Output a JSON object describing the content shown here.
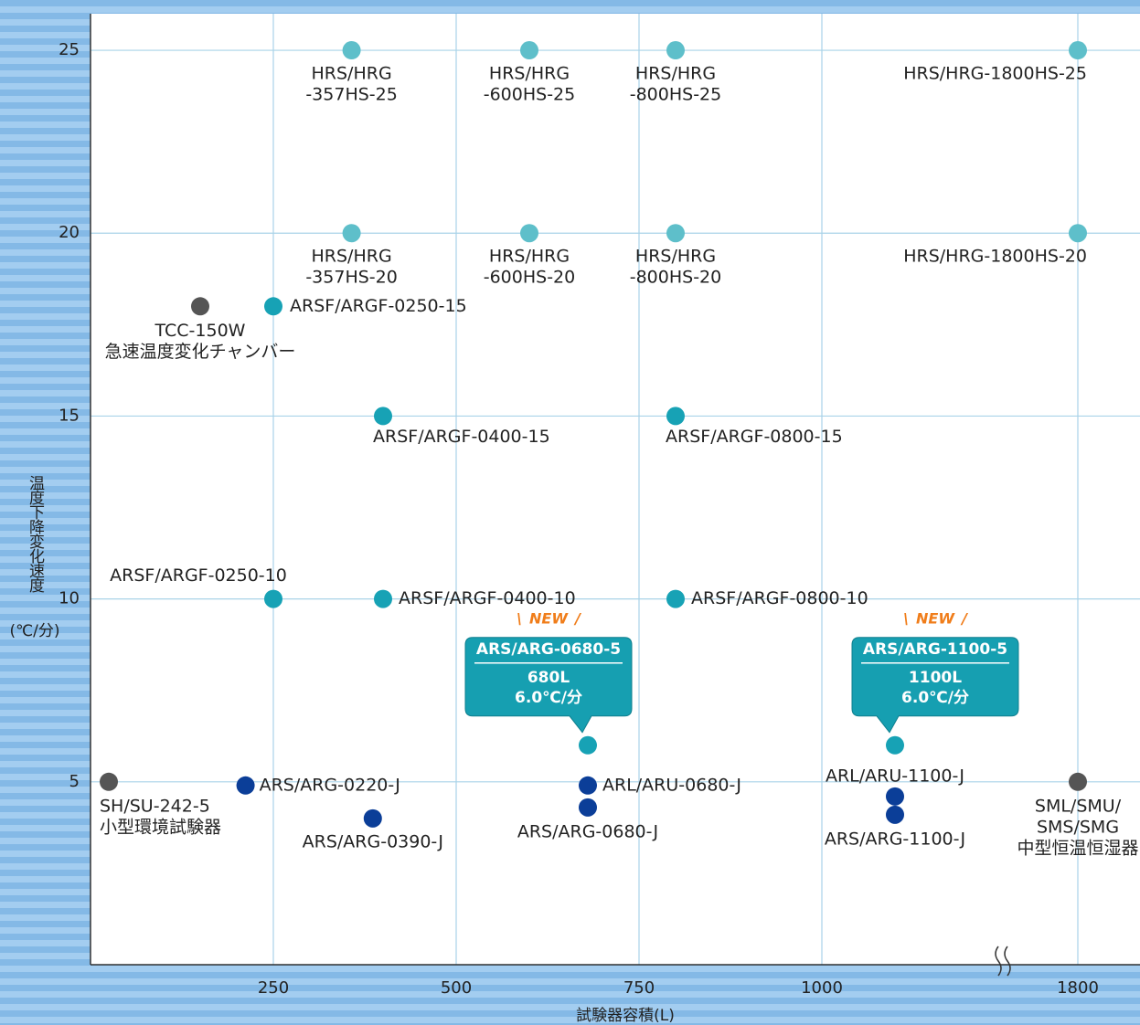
{
  "chart_data": {
    "type": "scatter",
    "xlabel": "試験器容積(L)",
    "ylabel": "温度下降変化速度",
    "yunit": "(℃/分)",
    "xlim": [
      0,
      1885
    ],
    "x_break": [
      1250,
      1700
    ],
    "xticks": [
      250,
      500,
      750,
      1000,
      1800
    ],
    "ylim": [
      0,
      26
    ],
    "yticks": [
      5,
      10,
      15,
      20,
      25
    ],
    "grid": true,
    "points": [
      {
        "label": [
          "HRS/HRG",
          "-357HS-25"
        ],
        "x": 357,
        "y": 25,
        "color": "#5ebfca"
      },
      {
        "label": [
          "HRS/HRG",
          "-600HS-25"
        ],
        "x": 600,
        "y": 25,
        "color": "#5ebfca"
      },
      {
        "label": [
          "HRS/HRG",
          "-800HS-25"
        ],
        "x": 800,
        "y": 25,
        "color": "#5ebfca"
      },
      {
        "label": [
          "HRS/HRG-1800HS-25"
        ],
        "x": 1800,
        "y": 25,
        "color": "#5ebfca"
      },
      {
        "label": [
          "HRS/HRG",
          "-357HS-20"
        ],
        "x": 357,
        "y": 20,
        "color": "#5ebfca"
      },
      {
        "label": [
          "HRS/HRG",
          "-600HS-20"
        ],
        "x": 600,
        "y": 20,
        "color": "#5ebfca"
      },
      {
        "label": [
          "HRS/HRG",
          "-800HS-20"
        ],
        "x": 800,
        "y": 20,
        "color": "#5ebfca"
      },
      {
        "label": [
          "HRS/HRG-1800HS-20"
        ],
        "x": 1800,
        "y": 20,
        "color": "#5ebfca"
      },
      {
        "label": [
          "TCC-150W",
          "急速温度変化チャンバー"
        ],
        "x": 150,
        "y": 18,
        "color": "#555555"
      },
      {
        "label": [
          "ARSF/ARGF-0250-15"
        ],
        "x": 250,
        "y": 18,
        "color": "#17a2b5"
      },
      {
        "label": [
          "ARSF/ARGF-0400-15"
        ],
        "x": 400,
        "y": 15,
        "color": "#17a2b5"
      },
      {
        "label": [
          "ARSF/ARGF-0800-15"
        ],
        "x": 800,
        "y": 15,
        "color": "#17a2b5"
      },
      {
        "label": [
          "ARSF/ARGF-0250-10"
        ],
        "x": 250,
        "y": 10,
        "color": "#17a2b5"
      },
      {
        "label": [
          "ARSF/ARGF-0400-10"
        ],
        "x": 400,
        "y": 10,
        "color": "#17a2b5"
      },
      {
        "label": [
          "ARSF/ARGF-0800-10"
        ],
        "x": 800,
        "y": 10,
        "color": "#17a2b5"
      },
      {
        "callout": {
          "badge": "NEW",
          "title": "ARS/ARG-0680-5",
          "lines": [
            "680L",
            "6.0℃/分"
          ]
        },
        "x": 680,
        "y": 6,
        "color": "#17a2b5"
      },
      {
        "callout": {
          "badge": "NEW",
          "title": "ARS/ARG-1100-5",
          "lines": [
            "1100L",
            "6.0℃/分"
          ]
        },
        "x": 1100,
        "y": 6,
        "color": "#17a2b5"
      },
      {
        "label": [
          "SH/SU-242-5",
          "小型環境試験器"
        ],
        "x": 25,
        "y": 5,
        "color": "#555555"
      },
      {
        "label": [
          "ARS/ARG-0220-J"
        ],
        "x": 212,
        "y": 4.9,
        "color": "#0b3e98"
      },
      {
        "label": [
          "ARS/ARG-0390-J"
        ],
        "x": 386,
        "y": 4.0,
        "color": "#0b3e98"
      },
      {
        "label": [
          "ARL/ARU-0680-J"
        ],
        "x": 680,
        "y": 4.9,
        "color": "#0b3e98"
      },
      {
        "label": [
          "ARS/ARG-0680-J"
        ],
        "x": 680,
        "y": 4.3,
        "color": "#0b3e98"
      },
      {
        "label": [
          "ARL/ARU-1100-J"
        ],
        "x": 1100,
        "y": 4.6,
        "color": "#0b3e98"
      },
      {
        "label": [
          "ARS/ARG-1100-J"
        ],
        "x": 1100,
        "y": 4.1,
        "color": "#0b3e98"
      },
      {
        "label": [
          "SML/SMU/",
          "SMS/SMG",
          "中型恒温恒湿器"
        ],
        "x": 1800,
        "y": 5,
        "color": "#555555"
      }
    ]
  }
}
